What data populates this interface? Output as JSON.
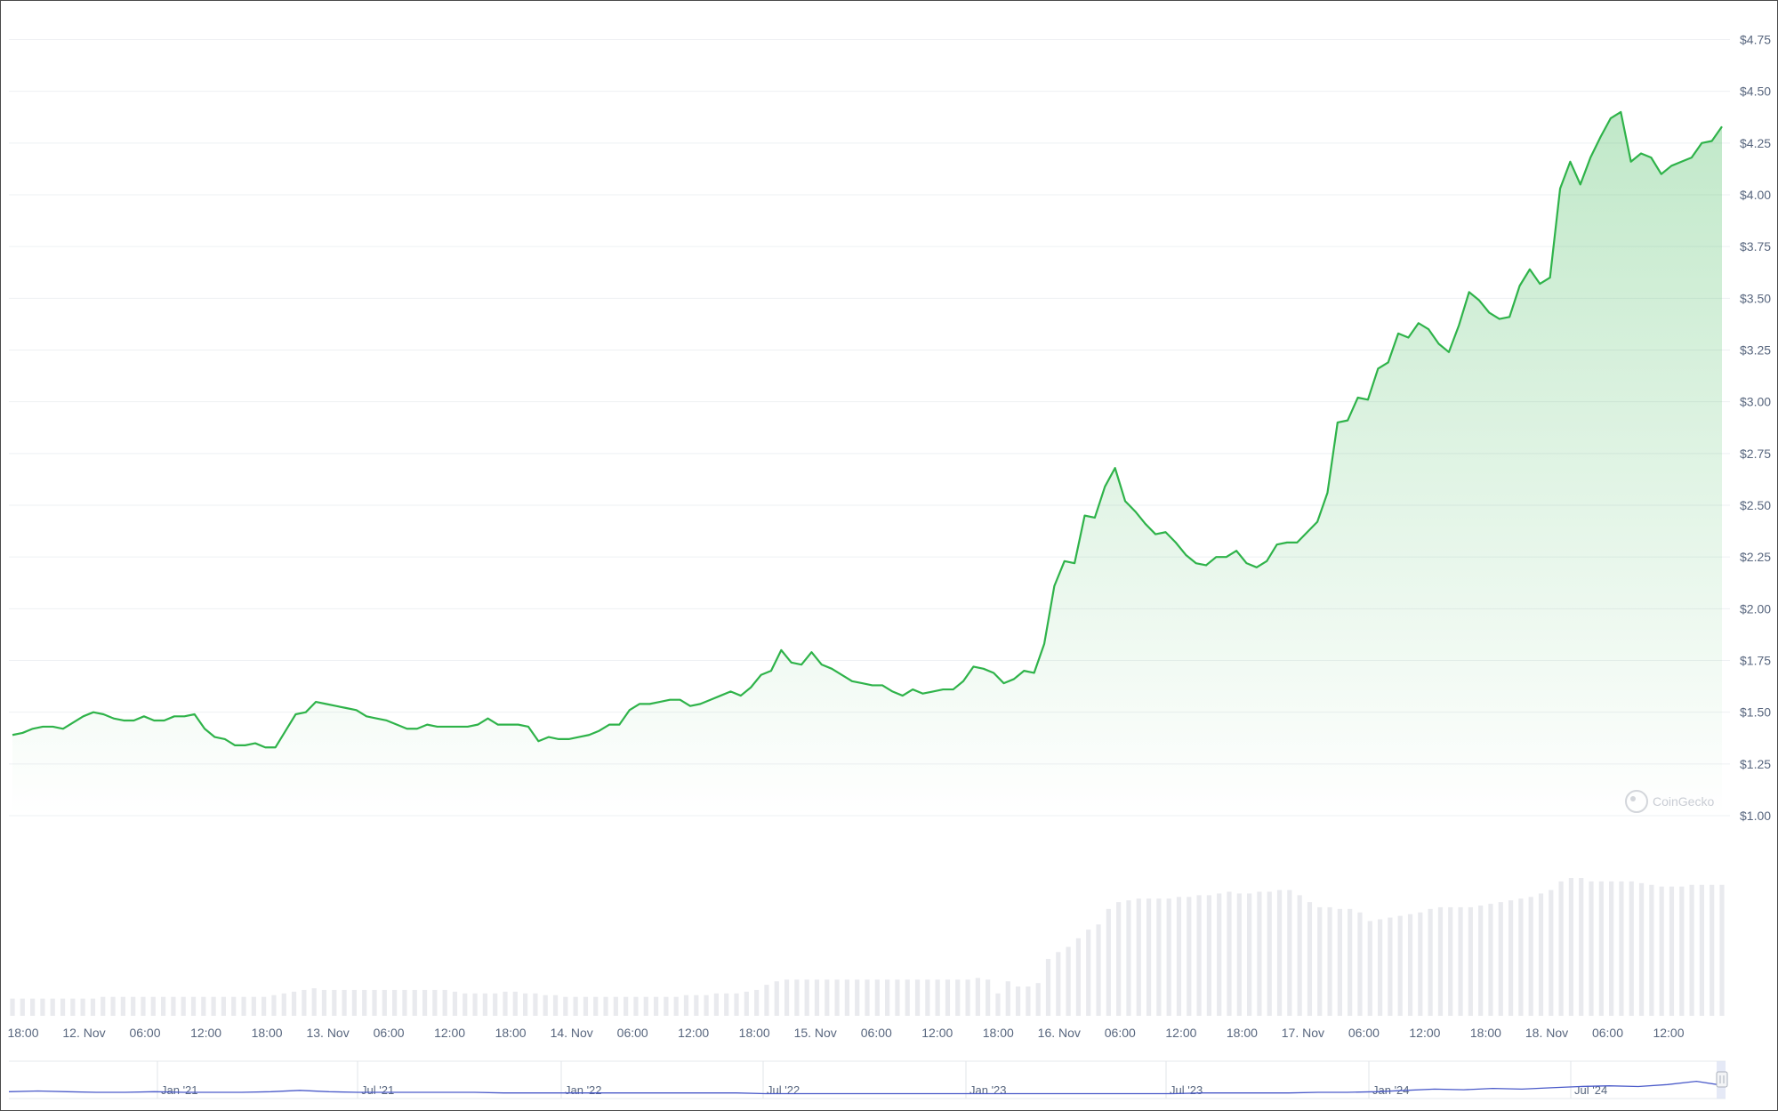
{
  "chart_data": {
    "type": "area",
    "title": "",
    "xlabel": "",
    "ylabel": "",
    "ylim": [
      1.0,
      4.75
    ],
    "y_ticks": [
      "$1.00",
      "$1.25",
      "$1.50",
      "$1.75",
      "$2.00",
      "$2.25",
      "$2.50",
      "$2.75",
      "$3.00",
      "$3.25",
      "$3.50",
      "$3.75",
      "$4.00",
      "$4.25",
      "$4.50",
      "$4.75"
    ],
    "x_ticks": [
      "18:00",
      "12. Nov",
      "06:00",
      "12:00",
      "18:00",
      "13. Nov",
      "06:00",
      "12:00",
      "18:00",
      "14. Nov",
      "06:00",
      "12:00",
      "18:00",
      "15. Nov",
      "06:00",
      "12:00",
      "18:00",
      "16. Nov",
      "06:00",
      "12:00",
      "18:00",
      "17. Nov",
      "06:00",
      "12:00",
      "18:00",
      "18. Nov",
      "06:00",
      "12:00"
    ],
    "x_range_hours": [
      0,
      163
    ],
    "grid": true,
    "line_color": "#2fb34a",
    "fill_color": "#2fb34a",
    "volume_bar_color": "#e9eaee",
    "series": [
      {
        "values": [
          1.39,
          1.4,
          1.42,
          1.43,
          1.43,
          1.42,
          1.45,
          1.48,
          1.5,
          1.49,
          1.47,
          1.46,
          1.46,
          1.48,
          1.46,
          1.46,
          1.48,
          1.48,
          1.49,
          1.42,
          1.38,
          1.37,
          1.34,
          1.34,
          1.35,
          1.33,
          1.33,
          1.41,
          1.49,
          1.5,
          1.55,
          1.54,
          1.53,
          1.52,
          1.51,
          1.48,
          1.47,
          1.46,
          1.44,
          1.42,
          1.42,
          1.44,
          1.43,
          1.43,
          1.43,
          1.43,
          1.44,
          1.47,
          1.44,
          1.44,
          1.44,
          1.43,
          1.36,
          1.38,
          1.37,
          1.37,
          1.38,
          1.39,
          1.41,
          1.44,
          1.44,
          1.51,
          1.54,
          1.54,
          1.55,
          1.56,
          1.56,
          1.53,
          1.54,
          1.56,
          1.58,
          1.6,
          1.58,
          1.62,
          1.68,
          1.7,
          1.8,
          1.74,
          1.73,
          1.79,
          1.73,
          1.71,
          1.68,
          1.65,
          1.64,
          1.63,
          1.63,
          1.6,
          1.58,
          1.61,
          1.59,
          1.6,
          1.61,
          1.61,
          1.65,
          1.72,
          1.71,
          1.69,
          1.64,
          1.66,
          1.7,
          1.69,
          1.83,
          2.11,
          2.23,
          2.22,
          2.45,
          2.44,
          2.59,
          2.68,
          2.52,
          2.47,
          2.41,
          2.36,
          2.37,
          2.32,
          2.26,
          2.22,
          2.21,
          2.25,
          2.25,
          2.28,
          2.22,
          2.2,
          2.23,
          2.31,
          2.32,
          2.32,
          2.37,
          2.42,
          2.56,
          2.9,
          2.91,
          3.02,
          3.01,
          3.16,
          3.19,
          3.33,
          3.31,
          3.38,
          3.35,
          3.28,
          3.24,
          3.37,
          3.53,
          3.49,
          3.43,
          3.4,
          3.41,
          3.56,
          3.64,
          3.57,
          3.6,
          4.03,
          4.16,
          4.05,
          4.18,
          4.28,
          4.37,
          4.4,
          4.16,
          4.2,
          4.18,
          4.1,
          4.14,
          4.16,
          4.18,
          4.25,
          4.26,
          4.33
        ]
      }
    ],
    "volume": [
      0.1,
      0.1,
      0.1,
      0.1,
      0.1,
      0.1,
      0.1,
      0.1,
      0.1,
      0.11,
      0.11,
      0.11,
      0.11,
      0.11,
      0.11,
      0.11,
      0.11,
      0.11,
      0.11,
      0.11,
      0.11,
      0.11,
      0.11,
      0.11,
      0.11,
      0.11,
      0.12,
      0.13,
      0.14,
      0.15,
      0.16,
      0.15,
      0.15,
      0.15,
      0.15,
      0.15,
      0.15,
      0.15,
      0.15,
      0.15,
      0.15,
      0.15,
      0.15,
      0.15,
      0.14,
      0.13,
      0.13,
      0.13,
      0.13,
      0.14,
      0.14,
      0.13,
      0.13,
      0.12,
      0.12,
      0.11,
      0.11,
      0.11,
      0.11,
      0.11,
      0.11,
      0.11,
      0.11,
      0.11,
      0.11,
      0.11,
      0.11,
      0.12,
      0.12,
      0.12,
      0.13,
      0.13,
      0.13,
      0.14,
      0.15,
      0.18,
      0.2,
      0.21,
      0.21,
      0.21,
      0.21,
      0.21,
      0.21,
      0.21,
      0.21,
      0.21,
      0.21,
      0.21,
      0.21,
      0.21,
      0.21,
      0.21,
      0.21,
      0.21,
      0.21,
      0.21,
      0.22,
      0.21,
      0.13,
      0.2,
      0.17,
      0.17,
      0.19,
      0.33,
      0.37,
      0.4,
      0.45,
      0.5,
      0.53,
      0.62,
      0.66,
      0.67,
      0.68,
      0.68,
      0.68,
      0.68,
      0.69,
      0.69,
      0.7,
      0.7,
      0.71,
      0.72,
      0.71,
      0.71,
      0.72,
      0.72,
      0.73,
      0.73,
      0.7,
      0.66,
      0.63,
      0.63,
      0.62,
      0.62,
      0.6,
      0.55,
      0.56,
      0.57,
      0.58,
      0.59,
      0.6,
      0.62,
      0.63,
      0.63,
      0.63,
      0.63,
      0.64,
      0.65,
      0.66,
      0.67,
      0.68,
      0.69,
      0.71,
      0.73,
      0.78,
      0.8,
      0.8,
      0.78,
      0.78,
      0.78,
      0.78,
      0.78,
      0.77,
      0.76,
      0.75,
      0.75,
      0.75,
      0.76,
      0.76,
      0.76,
      0.76
    ]
  },
  "navigator": {
    "labels": [
      "Jan '21",
      "Jul '21",
      "Jan '22",
      "Jul '22",
      "Jan '23",
      "Jul '23",
      "Jan '24",
      "Jul '24"
    ],
    "values": [
      0.34,
      0.35,
      0.34,
      0.33,
      0.33,
      0.34,
      0.33,
      0.33,
      0.33,
      0.34,
      0.36,
      0.34,
      0.33,
      0.33,
      0.33,
      0.33,
      0.33,
      0.32,
      0.32,
      0.32,
      0.32,
      0.32,
      0.32,
      0.32,
      0.32,
      0.32,
      0.31,
      0.31,
      0.31,
      0.31,
      0.31,
      0.31,
      0.31,
      0.31,
      0.31,
      0.31,
      0.31,
      0.31,
      0.31,
      0.31,
      0.31,
      0.32,
      0.32,
      0.32,
      0.32,
      0.33,
      0.33,
      0.34,
      0.36,
      0.38,
      0.37,
      0.39,
      0.38,
      0.4,
      0.42,
      0.43,
      0.42,
      0.45,
      0.5,
      0.43
    ]
  },
  "watermark": "CoinGecko"
}
